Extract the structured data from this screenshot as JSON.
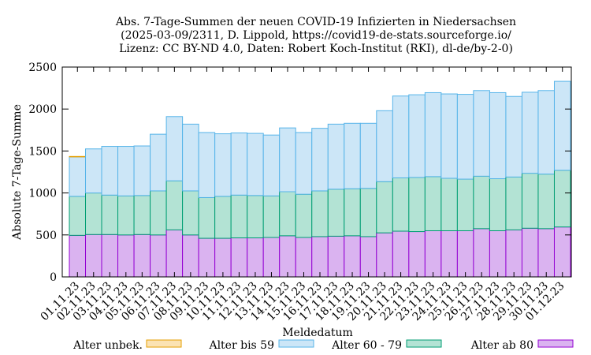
{
  "chart_data": {
    "type": "bar",
    "stacked": true,
    "title_lines": [
      "Abs. 7-Tage-Summen der neuen COVID-19 Infizierten in Niedersachsen",
      "(2025-03-09/2311, D. Lippold, https://covid19-de-stats.sourceforge.io/",
      "Lizenz: CC BY-ND 4.0, Daten: Robert Koch-Institut (RKI), dl-de/by-2-0)"
    ],
    "xlabel": "Meldedatum",
    "ylabel": "Absolute 7-Tage-Summe",
    "ylim": [
      0,
      2500
    ],
    "yticks": [
      0,
      500,
      1000,
      1500,
      2000,
      2500
    ],
    "legend_position": "bottom",
    "categories": [
      "01.11.23",
      "02.11.23",
      "03.11.23",
      "04.11.23",
      "05.11.23",
      "06.11.23",
      "07.11.23",
      "08.11.23",
      "09.11.23",
      "10.11.23",
      "11.11.23",
      "12.11.23",
      "13.11.23",
      "14.11.23",
      "15.11.23",
      "16.11.23",
      "17.11.23",
      "18.11.23",
      "19.11.23",
      "20.11.23",
      "21.11.23",
      "22.11.23",
      "23.11.23",
      "24.11.23",
      "25.11.23",
      "26.11.23",
      "27.11.23",
      "28.11.23",
      "29.11.23",
      "30.11.23",
      "01.12.23"
    ],
    "series": [
      {
        "name": "Alter ab 80",
        "fill": "#dab3f0",
        "stroke": "#9400d3",
        "values": [
          495,
          505,
          505,
          500,
          505,
          500,
          560,
          500,
          460,
          460,
          465,
          465,
          470,
          490,
          470,
          480,
          485,
          490,
          480,
          525,
          545,
          540,
          550,
          550,
          550,
          575,
          550,
          560,
          580,
          575,
          595
        ]
      },
      {
        "name": "Alter 60 - 79",
        "fill": "#b3e3d4",
        "stroke": "#009e73",
        "values": [
          465,
          495,
          470,
          465,
          465,
          525,
          585,
          525,
          485,
          500,
          510,
          505,
          495,
          525,
          515,
          545,
          560,
          560,
          575,
          610,
          635,
          645,
          645,
          625,
          615,
          625,
          620,
          630,
          655,
          650,
          675
        ]
      },
      {
        "name": "Alter bis 59",
        "fill": "#cce6f7",
        "stroke": "#56b4e9",
        "values": [
          470,
          525,
          580,
          590,
          590,
          675,
          765,
          795,
          775,
          745,
          740,
          740,
          725,
          760,
          735,
          745,
          775,
          780,
          775,
          845,
          975,
          985,
          1000,
          1005,
          1010,
          1020,
          1025,
          960,
          965,
          995,
          1060
        ]
      },
      {
        "name": "Alter unbek.",
        "fill": "#fbe3b3",
        "stroke": "#e69f00",
        "values": [
          5,
          0,
          0,
          0,
          0,
          0,
          0,
          0,
          0,
          0,
          0,
          0,
          0,
          0,
          0,
          0,
          0,
          0,
          0,
          0,
          0,
          0,
          0,
          0,
          0,
          0,
          0,
          0,
          0,
          0,
          0
        ]
      }
    ],
    "legend_order": [
      "Alter unbek.",
      "Alter bis 59",
      "Alter 60 - 79",
      "Alter ab 80"
    ]
  }
}
